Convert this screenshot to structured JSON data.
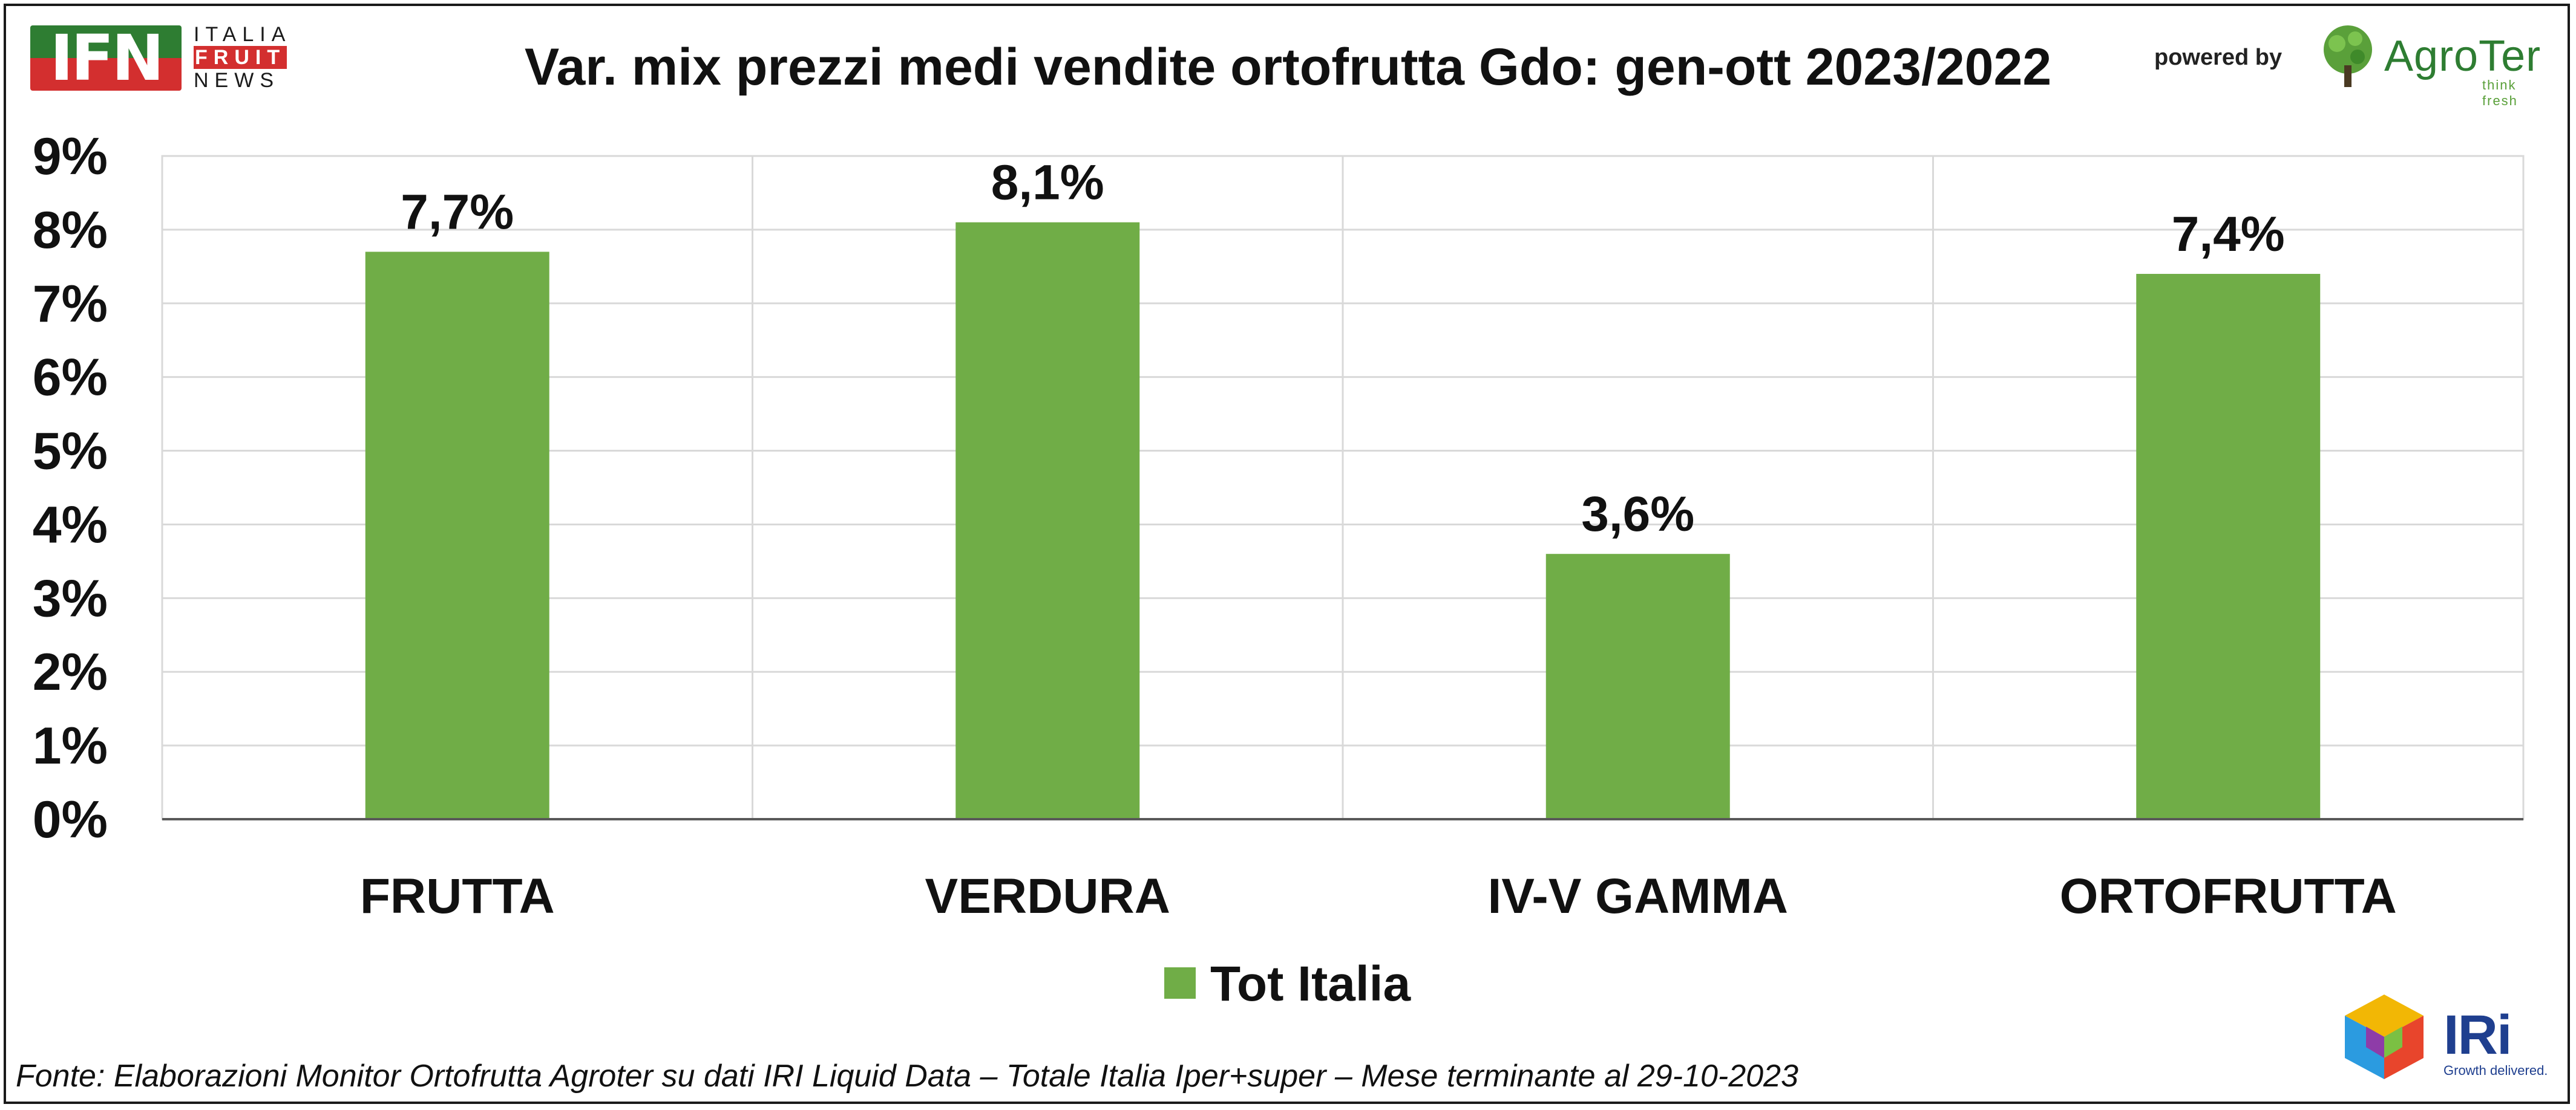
{
  "header": {
    "ifn_logo": {
      "letters": "IFN",
      "words": [
        "ITALIA",
        "FRUIT",
        "NEWS"
      ]
    },
    "powered_by": "powered by",
    "agroter_logo": {
      "name": "AgroTer",
      "tagline": "think fresh"
    }
  },
  "chart_data": {
    "type": "bar",
    "title": "Var. mix prezzi medi vendite ortofrutta Gdo: gen-ott 2023/2022",
    "categories": [
      "FRUTTA",
      "VERDURA",
      "IV-V GAMMA",
      "ORTOFRUTTA"
    ],
    "series": [
      {
        "name": "Tot Italia",
        "values": [
          7.7,
          8.1,
          3.6,
          7.4
        ],
        "labels": [
          "7,7%",
          "8,1%",
          "3,6%",
          "7,4%"
        ],
        "color": "#70ad47"
      }
    ],
    "yticks": [
      "0%",
      "1%",
      "2%",
      "3%",
      "4%",
      "5%",
      "6%",
      "7%",
      "8%",
      "9%"
    ],
    "ylim": [
      0,
      9
    ],
    "grid": true,
    "legend_position": "bottom"
  },
  "footer": {
    "source": "Fonte: Elaborazioni Monitor Ortofrutta Agroter su dati IRI Liquid Data – Totale Italia Iper+super – Mese terminante al 29-10-2023",
    "iri_logo": {
      "name": "IRi",
      "tagline": "Growth delivered."
    }
  },
  "colors": {
    "bar": "#70ad47",
    "grid": "#d9d9d9",
    "axis": "#595959",
    "text": "#111111"
  }
}
